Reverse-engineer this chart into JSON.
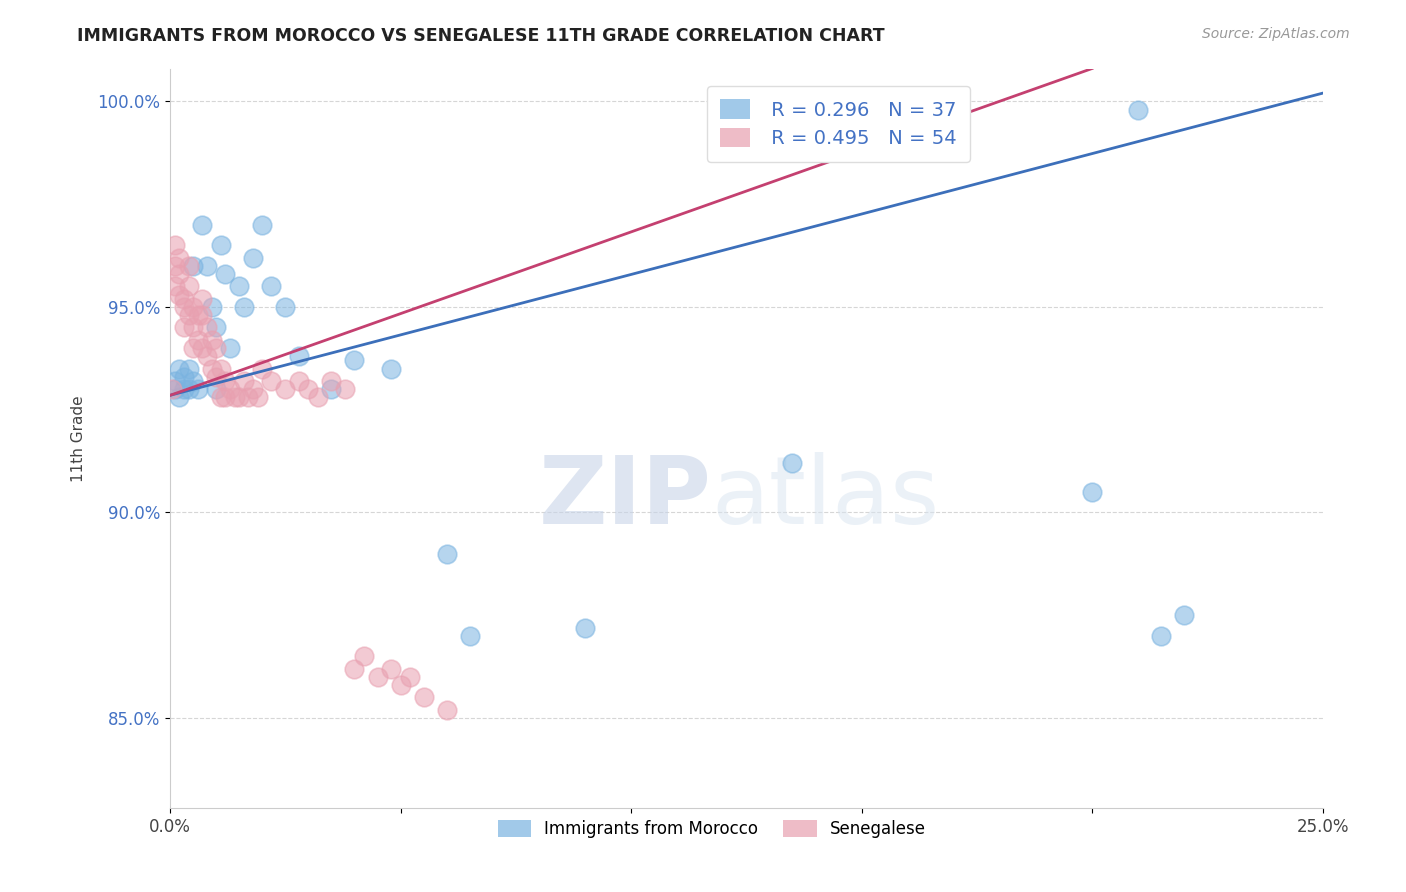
{
  "title": "IMMIGRANTS FROM MOROCCO VS SENEGALESE 11TH GRADE CORRELATION CHART",
  "source": "Source: ZipAtlas.com",
  "ylabel": "11th Grade",
  "ylabel_ticks": [
    "85.0%",
    "90.0%",
    "95.0%",
    "100.0%"
  ],
  "xlim": [
    0.0,
    0.25
  ],
  "ylim": [
    0.828,
    1.008
  ],
  "y_ticks": [
    0.85,
    0.9,
    0.95,
    1.0
  ],
  "x_ticks": [
    0.0,
    0.25
  ],
  "x_tick_labels": [
    "0.0%",
    "25.0%"
  ],
  "legend_blue_R": "0.296",
  "legend_blue_N": "37",
  "legend_pink_R": "0.495",
  "legend_pink_N": "54",
  "legend_label_blue": "Immigrants from Morocco",
  "legend_label_pink": "Senegalese",
  "watermark_zip": "ZIP",
  "watermark_atlas": "atlas",
  "blue_color": "#7ab3e0",
  "pink_color": "#e8a0b0",
  "blue_line_color": "#3c6fba",
  "pink_line_color": "#c44070",
  "background_color": "#ffffff",
  "grid_color": "#cccccc",
  "blue_line_x": [
    0.0,
    0.25
  ],
  "blue_line_y": [
    0.9285,
    1.002
  ],
  "pink_line_x": [
    0.0,
    0.2
  ],
  "pink_line_y": [
    0.9285,
    1.008
  ],
  "morocco_x": [
    0.001,
    0.001,
    0.002,
    0.002,
    0.003,
    0.003,
    0.004,
    0.004,
    0.005,
    0.005,
    0.006,
    0.007,
    0.008,
    0.009,
    0.01,
    0.01,
    0.011,
    0.012,
    0.013,
    0.015,
    0.016,
    0.018,
    0.02,
    0.022,
    0.025,
    0.028,
    0.035,
    0.04,
    0.048,
    0.06,
    0.065,
    0.09,
    0.135,
    0.2,
    0.21,
    0.215,
    0.22
  ],
  "morocco_y": [
    0.93,
    0.932,
    0.928,
    0.935,
    0.93,
    0.933,
    0.93,
    0.935,
    0.932,
    0.96,
    0.93,
    0.97,
    0.96,
    0.95,
    0.93,
    0.945,
    0.965,
    0.958,
    0.94,
    0.955,
    0.95,
    0.962,
    0.97,
    0.955,
    0.95,
    0.938,
    0.93,
    0.937,
    0.935,
    0.89,
    0.87,
    0.872,
    0.912,
    0.905,
    0.998,
    0.87,
    0.875
  ],
  "senegal_x": [
    0.0005,
    0.001,
    0.001,
    0.001,
    0.002,
    0.002,
    0.002,
    0.003,
    0.003,
    0.003,
    0.004,
    0.004,
    0.004,
    0.005,
    0.005,
    0.005,
    0.006,
    0.006,
    0.007,
    0.007,
    0.007,
    0.008,
    0.008,
    0.009,
    0.009,
    0.01,
    0.01,
    0.011,
    0.011,
    0.012,
    0.012,
    0.013,
    0.014,
    0.015,
    0.016,
    0.017,
    0.018,
    0.019,
    0.02,
    0.022,
    0.025,
    0.028,
    0.03,
    0.032,
    0.035,
    0.038,
    0.04,
    0.042,
    0.045,
    0.048,
    0.05,
    0.052,
    0.055,
    0.06
  ],
  "senegal_y": [
    0.93,
    0.965,
    0.96,
    0.955,
    0.962,
    0.958,
    0.953,
    0.952,
    0.95,
    0.945,
    0.96,
    0.955,
    0.948,
    0.95,
    0.945,
    0.94,
    0.948,
    0.942,
    0.952,
    0.948,
    0.94,
    0.945,
    0.938,
    0.942,
    0.935,
    0.94,
    0.933,
    0.935,
    0.928,
    0.932,
    0.928,
    0.93,
    0.928,
    0.928,
    0.932,
    0.928,
    0.93,
    0.928,
    0.935,
    0.932,
    0.93,
    0.932,
    0.93,
    0.928,
    0.932,
    0.93,
    0.862,
    0.865,
    0.86,
    0.862,
    0.858,
    0.86,
    0.855,
    0.852
  ]
}
